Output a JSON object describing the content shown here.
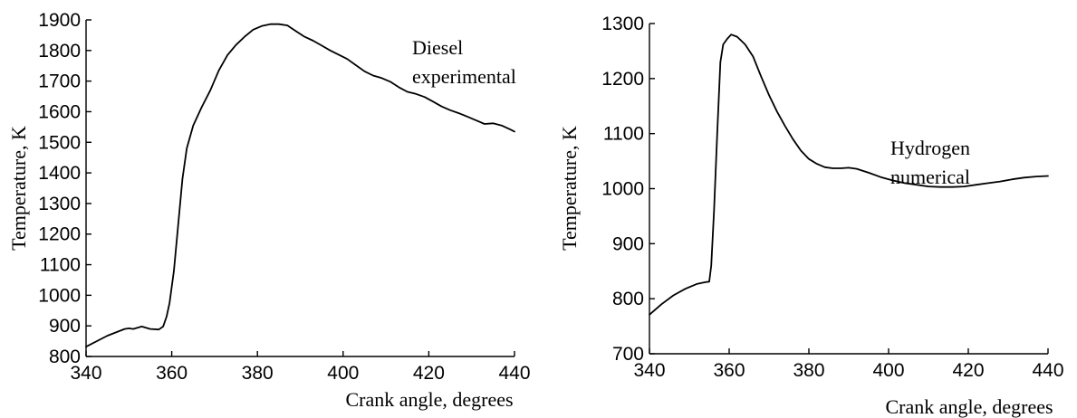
{
  "chart_data": [
    {
      "type": "line",
      "xlabel": "Crank angle, degrees",
      "ylabel": "Temperature, K",
      "xlim": [
        340,
        440
      ],
      "ylim": [
        800,
        1900
      ],
      "xticks": [
        340,
        360,
        380,
        400,
        420,
        440
      ],
      "yticks": [
        800,
        900,
        1000,
        1100,
        1200,
        1300,
        1400,
        1500,
        1600,
        1700,
        1800,
        1900
      ],
      "grid": false,
      "annotation": [
        "Diesel",
        "experimental"
      ],
      "line_color": "#000000",
      "series": [
        {
          "x": [
            340,
            345,
            349,
            350,
            351,
            353,
            355,
            357,
            358,
            358.8,
            359.5,
            360.5,
            361.5,
            362.5,
            363.5,
            365,
            367,
            369,
            371,
            373,
            375,
            377,
            379,
            381,
            383,
            385,
            387,
            389,
            391,
            393,
            395,
            397,
            399,
            401,
            403,
            405,
            407,
            409,
            411,
            413,
            415,
            417,
            419,
            421,
            423,
            425,
            427,
            429,
            431,
            433,
            435,
            437,
            439,
            440
          ],
          "y": [
            832,
            868,
            890,
            892,
            890,
            898,
            890,
            888,
            898,
            930,
            975,
            1080,
            1230,
            1380,
            1480,
            1555,
            1615,
            1670,
            1735,
            1785,
            1818,
            1845,
            1868,
            1880,
            1886,
            1886,
            1882,
            1863,
            1845,
            1832,
            1816,
            1800,
            1786,
            1772,
            1752,
            1732,
            1718,
            1710,
            1698,
            1680,
            1665,
            1658,
            1648,
            1633,
            1617,
            1605,
            1595,
            1584,
            1572,
            1560,
            1562,
            1555,
            1542,
            1535
          ]
        }
      ]
    },
    {
      "type": "line",
      "xlabel": "Crank angle, degrees",
      "ylabel": "Temperature, K",
      "xlim": [
        340,
        440
      ],
      "ylim": [
        700,
        1300
      ],
      "xticks": [
        340,
        360,
        380,
        400,
        420,
        440
      ],
      "yticks": [
        700,
        800,
        900,
        1000,
        1100,
        1200,
        1300
      ],
      "grid": false,
      "annotation": [
        "Hydrogen",
        "numerical"
      ],
      "line_color": "#000000",
      "series": [
        {
          "x": [
            340,
            343,
            346,
            349,
            352,
            354,
            355,
            355.5,
            356.2,
            357,
            357.8,
            358.5,
            359.5,
            360.5,
            362,
            364,
            366,
            368,
            370,
            372,
            374,
            376,
            378,
            380,
            382,
            384,
            386,
            388,
            390,
            392,
            395,
            398,
            401,
            404,
            407,
            410,
            413,
            416,
            419,
            422,
            425,
            428,
            431,
            434,
            437,
            440
          ],
          "y": [
            771,
            790,
            806,
            818,
            827,
            830,
            831,
            860,
            960,
            1100,
            1230,
            1262,
            1272,
            1280,
            1276,
            1262,
            1240,
            1204,
            1170,
            1140,
            1114,
            1090,
            1069,
            1054,
            1045,
            1039,
            1037,
            1037,
            1038,
            1036,
            1029,
            1021,
            1015,
            1010,
            1007,
            1004,
            1003,
            1003,
            1004,
            1007,
            1010,
            1013,
            1017,
            1020,
            1022,
            1023
          ]
        }
      ]
    }
  ]
}
